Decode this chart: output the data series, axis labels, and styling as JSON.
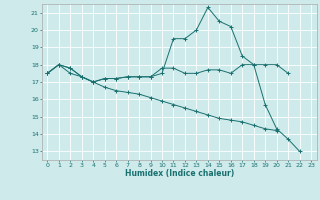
{
  "xlabel": "Humidex (Indice chaleur)",
  "ylabel": "",
  "xlim": [
    -0.5,
    23.5
  ],
  "ylim": [
    12.5,
    21.5
  ],
  "yticks": [
    13,
    14,
    15,
    16,
    17,
    18,
    19,
    20,
    21
  ],
  "xticks": [
    0,
    1,
    2,
    3,
    4,
    5,
    6,
    7,
    8,
    9,
    10,
    11,
    12,
    13,
    14,
    15,
    16,
    17,
    18,
    19,
    20,
    21,
    22,
    23
  ],
  "bg_color": "#ceeaea",
  "grid_color": "#ffffff",
  "line_color": "#1a7070",
  "lines": [
    {
      "x": [
        0,
        1,
        2,
        3,
        4,
        5,
        6,
        7,
        8,
        9,
        10,
        11,
        12,
        13,
        14,
        15,
        16,
        17,
        18,
        19,
        20,
        21
      ],
      "y": [
        17.5,
        18.0,
        17.8,
        17.3,
        17.0,
        17.2,
        17.2,
        17.3,
        17.3,
        17.3,
        17.8,
        17.8,
        17.5,
        17.5,
        17.7,
        17.7,
        17.5,
        18.0,
        18.0,
        18.0,
        18.0,
        17.5
      ]
    },
    {
      "x": [
        0,
        1,
        2,
        3,
        4,
        5,
        6,
        7,
        8,
        9,
        10,
        11,
        12,
        13,
        14,
        15,
        16,
        17,
        18,
        19,
        20,
        21,
        22
      ],
      "y": [
        17.5,
        18.0,
        17.8,
        17.3,
        17.0,
        17.2,
        17.2,
        17.3,
        17.3,
        17.3,
        17.5,
        19.5,
        19.5,
        20.0,
        21.3,
        20.5,
        20.2,
        18.5,
        18.0,
        15.7,
        14.3,
        13.7,
        13.0
      ]
    },
    {
      "x": [
        0,
        1,
        2,
        3,
        4,
        5,
        6,
        7,
        8,
        9,
        10,
        11,
        12,
        13,
        14,
        15,
        16,
        17,
        18,
        19,
        20
      ],
      "y": [
        17.5,
        18.0,
        17.5,
        17.3,
        17.0,
        16.7,
        16.5,
        16.4,
        16.3,
        16.1,
        15.9,
        15.7,
        15.5,
        15.3,
        15.1,
        14.9,
        14.8,
        14.7,
        14.5,
        14.3,
        14.2
      ]
    }
  ]
}
